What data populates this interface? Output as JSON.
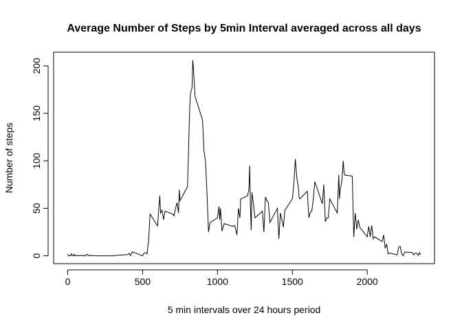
{
  "chart_data": {
    "type": "line",
    "title": "Average Number of Steps by 5min Interval averaged across all days",
    "x_label": "5 min intervals over 24 hours period",
    "y_label": "Number of steps",
    "color": "#000000",
    "x": [
      0,
      5,
      10,
      15,
      20,
      25,
      30,
      35,
      40,
      45,
      50,
      55,
      100,
      110,
      120,
      130,
      140,
      150,
      200,
      230,
      300,
      330,
      400,
      410,
      420,
      430,
      440,
      450,
      500,
      510,
      520,
      530,
      540,
      550,
      600,
      610,
      615,
      620,
      630,
      640,
      650,
      700,
      710,
      720,
      730,
      740,
      745,
      750,
      800,
      810,
      815,
      820,
      830,
      835,
      840,
      850,
      900,
      910,
      920,
      930,
      940,
      950,
      1000,
      1010,
      1015,
      1020,
      1030,
      1045,
      1100,
      1115,
      1130,
      1140,
      1150,
      1155,
      1200,
      1210,
      1215,
      1220,
      1225,
      1230,
      1240,
      1250,
      1300,
      1310,
      1320,
      1330,
      1340,
      1350,
      1400,
      1410,
      1420,
      1430,
      1440,
      1450,
      1500,
      1510,
      1520,
      1530,
      1540,
      1545,
      1550,
      1600,
      1610,
      1620,
      1630,
      1640,
      1650,
      1700,
      1710,
      1720,
      1730,
      1740,
      1750,
      1800,
      1810,
      1815,
      1820,
      1830,
      1840,
      1845,
      1850,
      1900,
      1910,
      1920,
      1930,
      1940,
      1950,
      2000,
      2010,
      2020,
      2030,
      2040,
      2050,
      2100,
      2110,
      2120,
      2130,
      2140,
      2150,
      2200,
      2210,
      2220,
      2230,
      2240,
      2250,
      2300,
      2310,
      2320,
      2330,
      2340,
      2350,
      2355
    ],
    "values": [
      1.7,
      0.3,
      0.1,
      0.2,
      0.1,
      2.1,
      0.5,
      0.9,
      0,
      1.5,
      0.3,
      0.1,
      0.3,
      0.2,
      0,
      1.8,
      0.2,
      0.3,
      0,
      0,
      0,
      0.6,
      1.2,
      2.6,
      0.3,
      4.1,
      3.5,
      3.1,
      0,
      3,
      3.3,
      2.1,
      16,
      44,
      31.5,
      53.8,
      63.5,
      45,
      48,
      38,
      47,
      44,
      42,
      50,
      56,
      45,
      69.5,
      58,
      73,
      130,
      157,
      171,
      177,
      206,
      196,
      168,
      143,
      110,
      100,
      66,
      25,
      35,
      40,
      52,
      38,
      50,
      26,
      34,
      31,
      32,
      22,
      50,
      40,
      60,
      63,
      70,
      95,
      52,
      27,
      67,
      55,
      40,
      47,
      25,
      62,
      58,
      56,
      35,
      50,
      18,
      45,
      38,
      30,
      48,
      60,
      75,
      102,
      82,
      72,
      62,
      60,
      68,
      40,
      46,
      47,
      60,
      78,
      55,
      75,
      36,
      40,
      40,
      60,
      45,
      85,
      60,
      70,
      78,
      100,
      88,
      85,
      84,
      20,
      45,
      28,
      38,
      30,
      20,
      31,
      20,
      32,
      18,
      20,
      15,
      22,
      8,
      12,
      2,
      3,
      1,
      9,
      10,
      2,
      0,
      4,
      3.5,
      1,
      3,
      3,
      0.5,
      3.5,
      1
    ],
    "xlim": [
      -94.2,
      2449.2
    ],
    "ylim": [
      -8.25,
      214.4
    ],
    "xticks": [
      0,
      500,
      1000,
      1500,
      2000
    ],
    "yticks": [
      0,
      50,
      100,
      150,
      200
    ]
  }
}
